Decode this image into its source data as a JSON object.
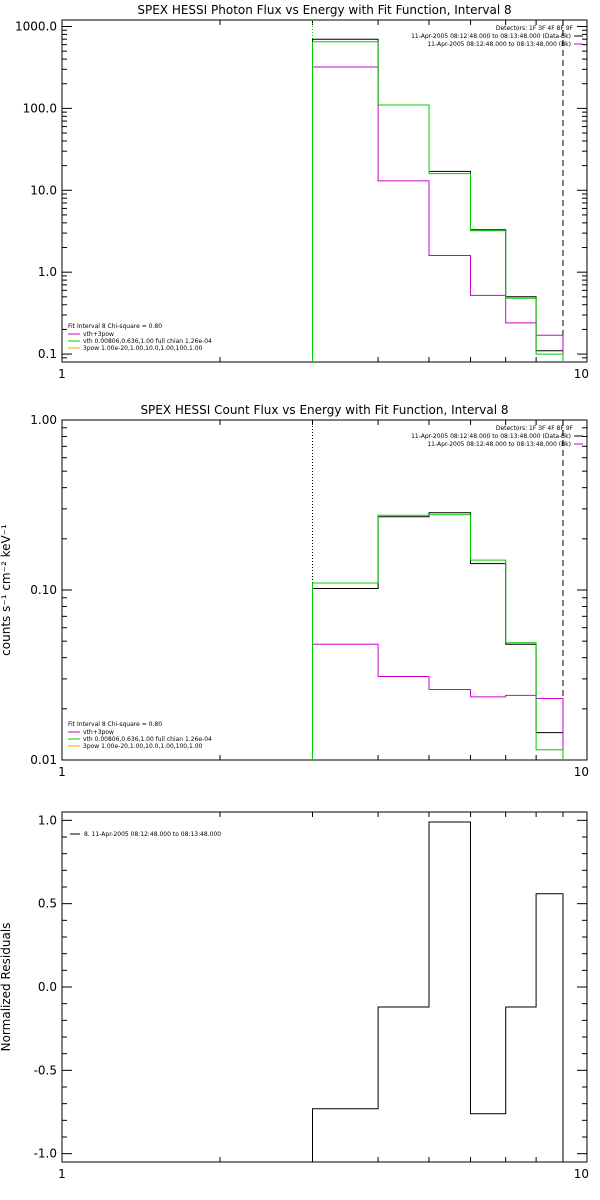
{
  "chart_data": [
    {
      "type": "line",
      "title": "SPEX HESSI Photon Flux vs Energy with Fit Function, Interval 8",
      "ylabel": "",
      "xscale": "log",
      "yscale": "log",
      "xlim": [
        1,
        10
      ],
      "ylim": [
        0.08,
        1200
      ],
      "xticks": [
        1,
        10
      ],
      "xtick_labels": [
        "1",
        "10"
      ],
      "yticks": [
        0.1,
        1,
        10,
        100,
        1000
      ],
      "ytick_labels": [
        "0.1",
        "1.0",
        "10.0",
        "100.0",
        "1000.0"
      ],
      "bin_edges": [
        3,
        4,
        5,
        6,
        7,
        8,
        9
      ],
      "series": [
        {
          "name": "",
          "color": "#000000",
          "values": [
            700,
            110,
            17,
            3.3,
            0.5,
            0.11
          ]
        },
        {
          "name": "vth+3pow",
          "color": "#cc00cc",
          "values": [
            320,
            13,
            1.6,
            0.52,
            0.24,
            0.17
          ]
        },
        {
          "name": "vth 0.00806,0.636,1.00  full chian 1.26e-04",
          "color": "#00cc00",
          "values": [
            650,
            110,
            16,
            3.2,
            0.48,
            0.1
          ]
        }
      ],
      "vlines": [
        {
          "x": 3,
          "style": "dotted",
          "color": "#00cc00"
        },
        {
          "x": 9,
          "style": "dashed",
          "color": "#000000"
        }
      ],
      "legend_topright": {
        "header": "Detectors: 1F 3F 4F 8F 9F",
        "entries": [
          {
            "text": "11-Apr-2005 08:12:48.000 to 08:13:48.000 (Data-Bk)",
            "color": "#000000"
          },
          {
            "text": "11-Apr-2005 08:12:48.000 to 08:13:48.000 (Bk)",
            "color": "#cc00cc"
          }
        ]
      },
      "legend_bottomleft": {
        "header": "Fit Interval 8   Chi-square = 0.80",
        "entries": [
          {
            "text": "vth+3pow",
            "color": "#cc00cc"
          },
          {
            "text": "vth 0.00806,0.636,1.00  full chian 1.26e-04",
            "color": "#00cc00"
          },
          {
            "text": "3pow 1.00e-20,1.00,10.0,1.00,100,1.00",
            "color": "#e0b000"
          }
        ]
      }
    },
    {
      "type": "line",
      "title": "SPEX HESSI Count Flux vs Energy with Fit Function, Interval 8",
      "ylabel": "counts s⁻¹ cm⁻² keV⁻¹",
      "xscale": "log",
      "yscale": "log",
      "xlim": [
        1,
        10
      ],
      "ylim": [
        0.01,
        1
      ],
      "xticks": [
        1,
        10
      ],
      "xtick_labels": [
        "1",
        "10"
      ],
      "yticks": [
        0.01,
        0.1,
        1
      ],
      "ytick_labels": [
        "0.01",
        "0.10",
        "1.00"
      ],
      "bin_edges": [
        3,
        4,
        5,
        6,
        7,
        8,
        9
      ],
      "series": [
        {
          "name": "",
          "color": "#000000",
          "values": [
            0.102,
            0.27,
            0.285,
            0.143,
            0.048,
            0.0145
          ]
        },
        {
          "name": "vth+3pow",
          "color": "#cc00cc",
          "values": [
            0.048,
            0.031,
            0.026,
            0.0235,
            0.024,
            0.023
          ]
        },
        {
          "name": "vth 0.00806,0.636,1.00  full chian 1.26e-04",
          "color": "#00cc00",
          "values": [
            0.11,
            0.275,
            0.277,
            0.15,
            0.049,
            0.0115
          ]
        }
      ],
      "vlines": [
        {
          "x": 3,
          "style": "dotted",
          "color": "#000000"
        },
        {
          "x": 9,
          "style": "dashed",
          "color": "#000000"
        }
      ],
      "legend_topright": {
        "header": "Detectors: 1F 3F 4F 8F 9F",
        "entries": [
          {
            "text": "11-Apr-2005 08:12:48.000 to 08:13:48.000 (Data-Bk)",
            "color": "#000000"
          },
          {
            "text": "11-Apr-2005 08:12:48.000 to 08:13:48.000 (Bk)",
            "color": "#cc00cc"
          }
        ]
      },
      "legend_bottomleft": {
        "header": "Fit Interval 8   Chi-square = 0.80",
        "entries": [
          {
            "text": "vth+3pow",
            "color": "#cc00cc"
          },
          {
            "text": "vth 0.00806,0.636,1.00  full chian 1.26e-04",
            "color": "#00cc00"
          },
          {
            "text": "3pow 1.00e-20,1.00,10.0,1.00,100,1.00",
            "color": "#e0b000"
          }
        ]
      }
    },
    {
      "type": "line",
      "title": "",
      "ylabel": "Normalized Residuals",
      "xscale": "log",
      "yscale": "linear",
      "xlim": [
        1,
        10
      ],
      "ylim": [
        -1.05,
        1.05
      ],
      "xticks": [
        1,
        10
      ],
      "xtick_labels": [
        "1",
        "10"
      ],
      "yticks": [
        -1,
        -0.5,
        0,
        0.5,
        1
      ],
      "ytick_labels": [
        "-1.0",
        "-0.5",
        "0.0",
        "0.5",
        "1.0"
      ],
      "bin_edges": [
        3,
        4,
        5,
        6,
        7,
        8,
        9
      ],
      "series": [
        {
          "name": "8. 11-Apr-2005 08:12:48.000 to 08:13:48.000",
          "color": "#000000",
          "values": [
            -0.73,
            -0.12,
            0.99,
            -0.76,
            -0.12,
            0.56
          ]
        }
      ],
      "vlines": [],
      "legend_topleft": {
        "entries": [
          {
            "text": "8. 11-Apr-2005 08:12:48.000 to 08:13:48.000",
            "color": "#000000"
          }
        ]
      }
    }
  ]
}
